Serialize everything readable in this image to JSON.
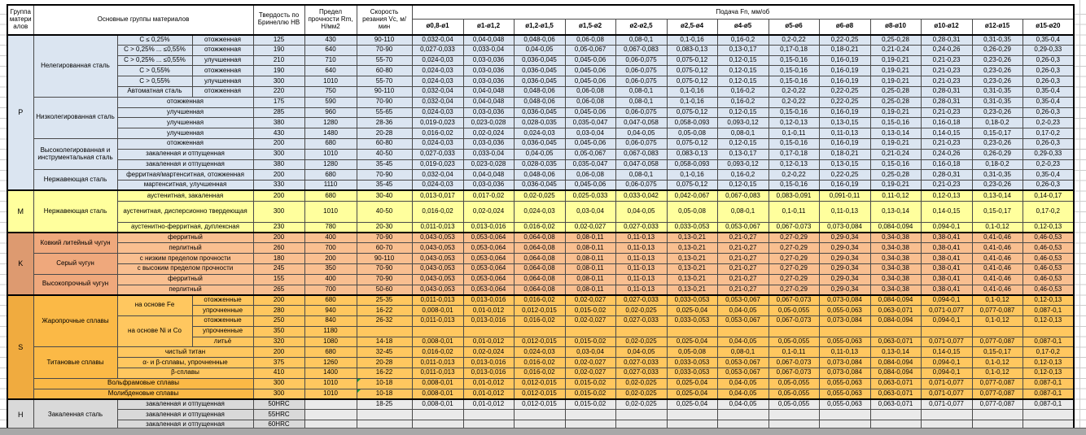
{
  "header": {
    "col_group": "Группа материалов",
    "col_main": "Основные группы материалов",
    "col_hb": "Твердость по Бринеллю HB",
    "col_rm": "Предел прочности Rm, Н/мм2",
    "col_vc": "Скорость резания Vc, м/мин",
    "feed_title": "Подача Fn, мм/об",
    "diameters": [
      "ø0,8-ø1",
      "ø1-ø1,2",
      "ø1,2-ø1,5",
      "ø1,5-ø2",
      "ø2-ø2,5",
      "ø2,5-ø4",
      "ø4-ø5",
      "ø5-ø6",
      "ø6-ø8",
      "ø8-ø10",
      "ø10-ø12",
      "ø12-ø15",
      "ø15-ø20"
    ]
  },
  "colors": {
    "group_p": "#dbe5f1",
    "group_m": "#ffff9d",
    "group_k": "#f9bf90",
    "group_k_dark": "#efa87c",
    "group_s": "#ffc75f",
    "group_s_dark": "#fbb946",
    "group_h": "#d9d9d9",
    "comment_marker": "#1e9e3e"
  },
  "feed_patterns": {
    "a": [
      "0,032-0,04",
      "0,04-0,048",
      "0,048-0,06",
      "0,06-0,08",
      "0,08-0,1",
      "0,1-0,16",
      "0,16-0,2",
      "0,2-0,22",
      "0,22-0,25",
      "0,25-0,28",
      "0,28-0,31",
      "0,31-0,35",
      "0,35-0,4"
    ],
    "b": [
      "0,027-0,033",
      "0,033-0,04",
      "0,04-0,05",
      "0,05-0,067",
      "0,067-0,083",
      "0,083-0,13",
      "0,13-0,17",
      "0,17-0,18",
      "0,18-0,21",
      "0,21-0,24",
      "0,24-0,26",
      "0,26-0,29",
      "0,29-0,33"
    ],
    "c": [
      "0,024-0,03",
      "0,03-0,036",
      "0,036-0,045",
      "0,045-0,06",
      "0,06-0,075",
      "0,075-0,12",
      "0,12-0,15",
      "0,15-0,16",
      "0,16-0,19",
      "0,19-0,21",
      "0,21-0,23",
      "0,23-0,26",
      "0,26-0,3"
    ],
    "d": [
      "0,019-0,023",
      "0,023-0,028",
      "0,028-0,035",
      "0,035-0,047",
      "0,047-0,058",
      "0,058-0,093",
      "0,093-0,12",
      "0,12-0,13",
      "0,13-0,15",
      "0,15-0,16",
      "0,16-0,18",
      "0,18-0,2",
      "0,2-0,23"
    ],
    "e": [
      "0,016-0,02",
      "0,02-0,024",
      "0,024-0,03",
      "0,03-0,04",
      "0,04-0,05",
      "0,05-0,08",
      "0,08-0,1",
      "0,1-0,11",
      "0,11-0,13",
      "0,13-0,14",
      "0,14-0,15",
      "0,15-0,17",
      "0,17-0,2"
    ],
    "f": [
      "0,013-0,017",
      "0,017-0,02",
      "0,02-0,025",
      "0,025-0,033",
      "0,033-0,042",
      "0,042-0,067",
      "0,067-0,083",
      "0,083-0,091",
      "0,091-0,11",
      "0,11-0,12",
      "0,12-0,13",
      "0,13-0,14",
      "0,14-0,17"
    ],
    "g": [
      "0,011-0,013",
      "0,013-0,016",
      "0,016-0,02",
      "0,02-0,027",
      "0,027-0,033",
      "0,033-0,053",
      "0,053-0,067",
      "0,067-0,073",
      "0,073-0,084",
      "0,084-0,094",
      "0,094-0,1",
      "0,1-0,12",
      "0,12-0,13"
    ],
    "k": [
      "0,043-0,053",
      "0,053-0,064",
      "0,064-0,08",
      "0,08-0,11",
      "0,11-0,13",
      "0,13-0,21",
      "0,21-0,27",
      "0,27-0,29",
      "0,29-0,34",
      "0,34-0,38",
      "0,38-0,41",
      "0,41-0,46",
      "0,46-0,53"
    ],
    "h": [
      "0,008-0,01",
      "0,01-0,012",
      "0,012-0,015",
      "0,015-0,02",
      "0,02-0,025",
      "0,025-0,04",
      "0,04-0,05",
      "0,05-0,055",
      "0,055-0,063",
      "0,063-0,071",
      "0,071-0,077",
      "0,077-0,087",
      "0,087-0,1"
    ],
    "none": [
      "",
      "",
      "",
      "",
      "",
      "",
      "",
      "",
      "",
      "",
      "",
      "",
      ""
    ]
  },
  "rows": [
    {
      "g": "p",
      "letter": "P",
      "lrs": 15,
      "start": true,
      "labels": [
        {
          "t": "Нелегированная сталь",
          "rs": 6,
          "c": "gname"
        },
        {
          "t": "C ≤ 0,25%"
        },
        {
          "t": "отожженная"
        }
      ],
      "hb": "125",
      "rm": "430",
      "vc": "90-110",
      "f": "a"
    },
    {
      "g": "p",
      "labels": [
        {
          "t": "C > 0,25% ... ≤0,55%"
        },
        {
          "t": "отожженная"
        }
      ],
      "hb": "190",
      "rm": "640",
      "vc": "70-90",
      "f": "b"
    },
    {
      "g": "p",
      "labels": [
        {
          "t": "C > 0,25% ... ≤0,55%"
        },
        {
          "t": "улучшенная"
        }
      ],
      "hb": "210",
      "rm": "710",
      "vc": "55-70",
      "f": "c"
    },
    {
      "g": "p",
      "labels": [
        {
          "t": "C > 0,55%"
        },
        {
          "t": "отожженная"
        }
      ],
      "hb": "190",
      "rm": "640",
      "vc": "60-80",
      "f": "c"
    },
    {
      "g": "p",
      "labels": [
        {
          "t": "C > 0,55%"
        },
        {
          "t": "улучшенная"
        }
      ],
      "hb": "300",
      "rm": "1010",
      "vc": "55-70",
      "f": "c"
    },
    {
      "g": "p",
      "labels": [
        {
          "t": "Автоматная сталь"
        },
        {
          "t": "отожженная"
        }
      ],
      "hb": "220",
      "rm": "750",
      "vc": "90-110",
      "f": "a"
    },
    {
      "g": "p",
      "labels": [
        {
          "t": "Низколегированная сталь",
          "rs": 4,
          "c": "gname"
        },
        {
          "t": "отожженная",
          "cs": 2
        }
      ],
      "hb": "175",
      "rm": "590",
      "vc": "70-90",
      "f": "a"
    },
    {
      "g": "p",
      "labels": [
        {
          "t": "улучшенная",
          "cs": 2
        }
      ],
      "hb": "285",
      "rm": "960",
      "vc": "55-65",
      "f": "c"
    },
    {
      "g": "p",
      "labels": [
        {
          "t": "улучшенная",
          "cs": 2
        }
      ],
      "hb": "380",
      "rm": "1280",
      "vc": "28-36",
      "f": "d"
    },
    {
      "g": "p",
      "labels": [
        {
          "t": "улучшенная",
          "cs": 2
        }
      ],
      "hb": "430",
      "rm": "1480",
      "vc": "20-28",
      "f": "e"
    },
    {
      "g": "p",
      "labels": [
        {
          "t": "Высоколегированная и инструментальная сталь",
          "rs": 3,
          "c": "gname"
        },
        {
          "t": "отожженная",
          "cs": 2
        }
      ],
      "hb": "200",
      "rm": "680",
      "vc": "60-80",
      "f": "c"
    },
    {
      "g": "p",
      "labels": [
        {
          "t": "закаленная и отпущенная",
          "cs": 2
        }
      ],
      "hb": "300",
      "rm": "1010",
      "vc": "40-50",
      "f": "b"
    },
    {
      "g": "p",
      "labels": [
        {
          "t": "закаленная и отпущенная",
          "cs": 2
        }
      ],
      "hb": "380",
      "rm": "1280",
      "vc": "35-45",
      "f": "d"
    },
    {
      "g": "p",
      "labels": [
        {
          "t": "Нержавеющая сталь",
          "rs": 2,
          "c": "gname"
        },
        {
          "t": "ферритная/мартенситная, отожженная",
          "cs": 2
        }
      ],
      "hb": "200",
      "rm": "680",
      "vc": "70-90",
      "f": "a"
    },
    {
      "g": "p",
      "labels": [
        {
          "t": "мартенситная, улучшенная",
          "cs": 2
        }
      ],
      "hb": "330",
      "rm": "1110",
      "vc": "35-45",
      "f": "c"
    },
    {
      "g": "m",
      "letter": "M",
      "lrs": 3,
      "start": true,
      "labels": [
        {
          "t": "Нержавеющая сталь",
          "rs": 3,
          "c": "gname"
        },
        {
          "t": "аустенитная, закаленная",
          "cs": 2
        }
      ],
      "hb": "200",
      "rm": "680",
      "vc": "30-40",
      "f": "f"
    },
    {
      "g": "m",
      "tall": true,
      "labels": [
        {
          "t": "аустенитная, дисперсионно твердеющая",
          "cs": 2
        }
      ],
      "hb": "300",
      "rm": "1010",
      "vc": "40-50",
      "f": "e"
    },
    {
      "g": "m",
      "labels": [
        {
          "t": "аустенитно-ферритная, дуплексная",
          "cs": 2
        }
      ],
      "hb": "230",
      "rm": "780",
      "vc": "20-30",
      "f": "g"
    },
    {
      "g": "k",
      "letter": "K",
      "lrs": 6,
      "start": true,
      "labels": [
        {
          "t": "Ковкий литейный чугун",
          "rs": 2,
          "c": "gname"
        },
        {
          "t": "ферритный",
          "cs": 2
        }
      ],
      "hb": "200",
      "rm": "400",
      "vc": "70-90",
      "f": "k"
    },
    {
      "g": "k",
      "labels": [
        {
          "t": "перлитный",
          "cs": 2
        }
      ],
      "hb": "260",
      "rm": "700",
      "vc": "60-70",
      "f": "k"
    },
    {
      "g": "k",
      "labels": [
        {
          "t": "Серый чугун",
          "rs": 2,
          "c": "gname"
        },
        {
          "t": "с низким пределом прочности",
          "cs": 2
        }
      ],
      "hb": "180",
      "rm": "200",
      "vc": "90-110",
      "f": "k"
    },
    {
      "g": "k",
      "labels": [
        {
          "t": "с высоким пределом прочности",
          "cs": 2
        }
      ],
      "hb": "245",
      "rm": "350",
      "vc": "70-90",
      "f": "k"
    },
    {
      "g": "k",
      "labels": [
        {
          "t": "Высокопрочный чугун",
          "rs": 2,
          "c": "gname"
        },
        {
          "t": "ферритный",
          "cs": 2
        }
      ],
      "hb": "155",
      "rm": "400",
      "vc": "70-90",
      "f": "k"
    },
    {
      "g": "k",
      "labels": [
        {
          "t": "перлитный",
          "cs": 2
        }
      ],
      "hb": "265",
      "rm": "700",
      "vc": "50-60",
      "f": "k"
    },
    {
      "g": "s",
      "letter": "S",
      "lrs": 10,
      "start": true,
      "labels": [
        {
          "t": "Жаропрочные сплавы",
          "rs": 5,
          "c": "gname"
        },
        {
          "t": "на основе Fe",
          "rs": 2
        },
        {
          "t": "отожженные"
        }
      ],
      "hb": "200",
      "rm": "680",
      "vc": "25-35",
      "f": "g"
    },
    {
      "g": "s",
      "labels": [
        {
          "t": "упрочненные"
        }
      ],
      "hb": "280",
      "rm": "940",
      "vc": "16-22",
      "f": "h"
    },
    {
      "g": "s",
      "labels": [
        {
          "t": "на основе Ni и Co",
          "rs": 3
        },
        {
          "t": "отожженные"
        }
      ],
      "hb": "250",
      "rm": "840",
      "vc": "26-32",
      "f": "g"
    },
    {
      "g": "s",
      "labels": [
        {
          "t": "упрочненные"
        }
      ],
      "hb": "350",
      "rm": "1180",
      "vc": "",
      "f": "none"
    },
    {
      "g": "s",
      "labels": [
        {
          "t": "литьё"
        }
      ],
      "hb": "320",
      "rm": "1080",
      "vc": "14-18",
      "f": "h"
    },
    {
      "g": "s",
      "labels": [
        {
          "t": "Титановые сплавы",
          "rs": 3,
          "c": "gname"
        },
        {
          "t": "чистый титан",
          "cs": 2
        }
      ],
      "hb": "200",
      "rm": "680",
      "vc": "32-45",
      "f": "e"
    },
    {
      "g": "s",
      "labels": [
        {
          "t": "α- и β-сплавы, упрочненные",
          "cs": 2
        }
      ],
      "hb": "375",
      "rm": "1260",
      "vc": "20-28",
      "f": "g"
    },
    {
      "g": "s",
      "labels": [
        {
          "t": "β-сплавы",
          "cs": 2
        }
      ],
      "hb": "410",
      "rm": "1400",
      "vc": "16-22",
      "f": "g"
    },
    {
      "g": "s",
      "labels": [
        {
          "t": "Вольфрамовые сплавы",
          "cs": 3,
          "c": "gname"
        }
      ],
      "hb": "300",
      "rm": "1010",
      "vc": "10-18",
      "f": "h",
      "note": true
    },
    {
      "g": "s",
      "labels": [
        {
          "t": "Молибденовые сплавы",
          "cs": 3,
          "c": "gname"
        }
      ],
      "hb": "300",
      "rm": "1010",
      "vc": "10-18",
      "f": "h",
      "note": true
    },
    {
      "g": "h",
      "letter": "H",
      "lrs": 3,
      "start": true,
      "labels": [
        {
          "t": "Закаленная сталь",
          "rs": 3,
          "c": "gname"
        },
        {
          "t": "закаленная и отпущенная",
          "cs": 2
        }
      ],
      "hb": "50HRC",
      "rm": "",
      "vc": "18-25",
      "f": "h"
    },
    {
      "g": "h",
      "labels": [
        {
          "t": "закаленная и отпущенная",
          "cs": 2
        }
      ],
      "hb": "55HRC",
      "rm": "",
      "vc": "",
      "f": "none"
    },
    {
      "g": "h",
      "labels": [
        {
          "t": "закаленная и отпущенная",
          "cs": 2
        }
      ],
      "hb": "60HRC",
      "rm": "",
      "vc": "",
      "f": "none"
    }
  ]
}
